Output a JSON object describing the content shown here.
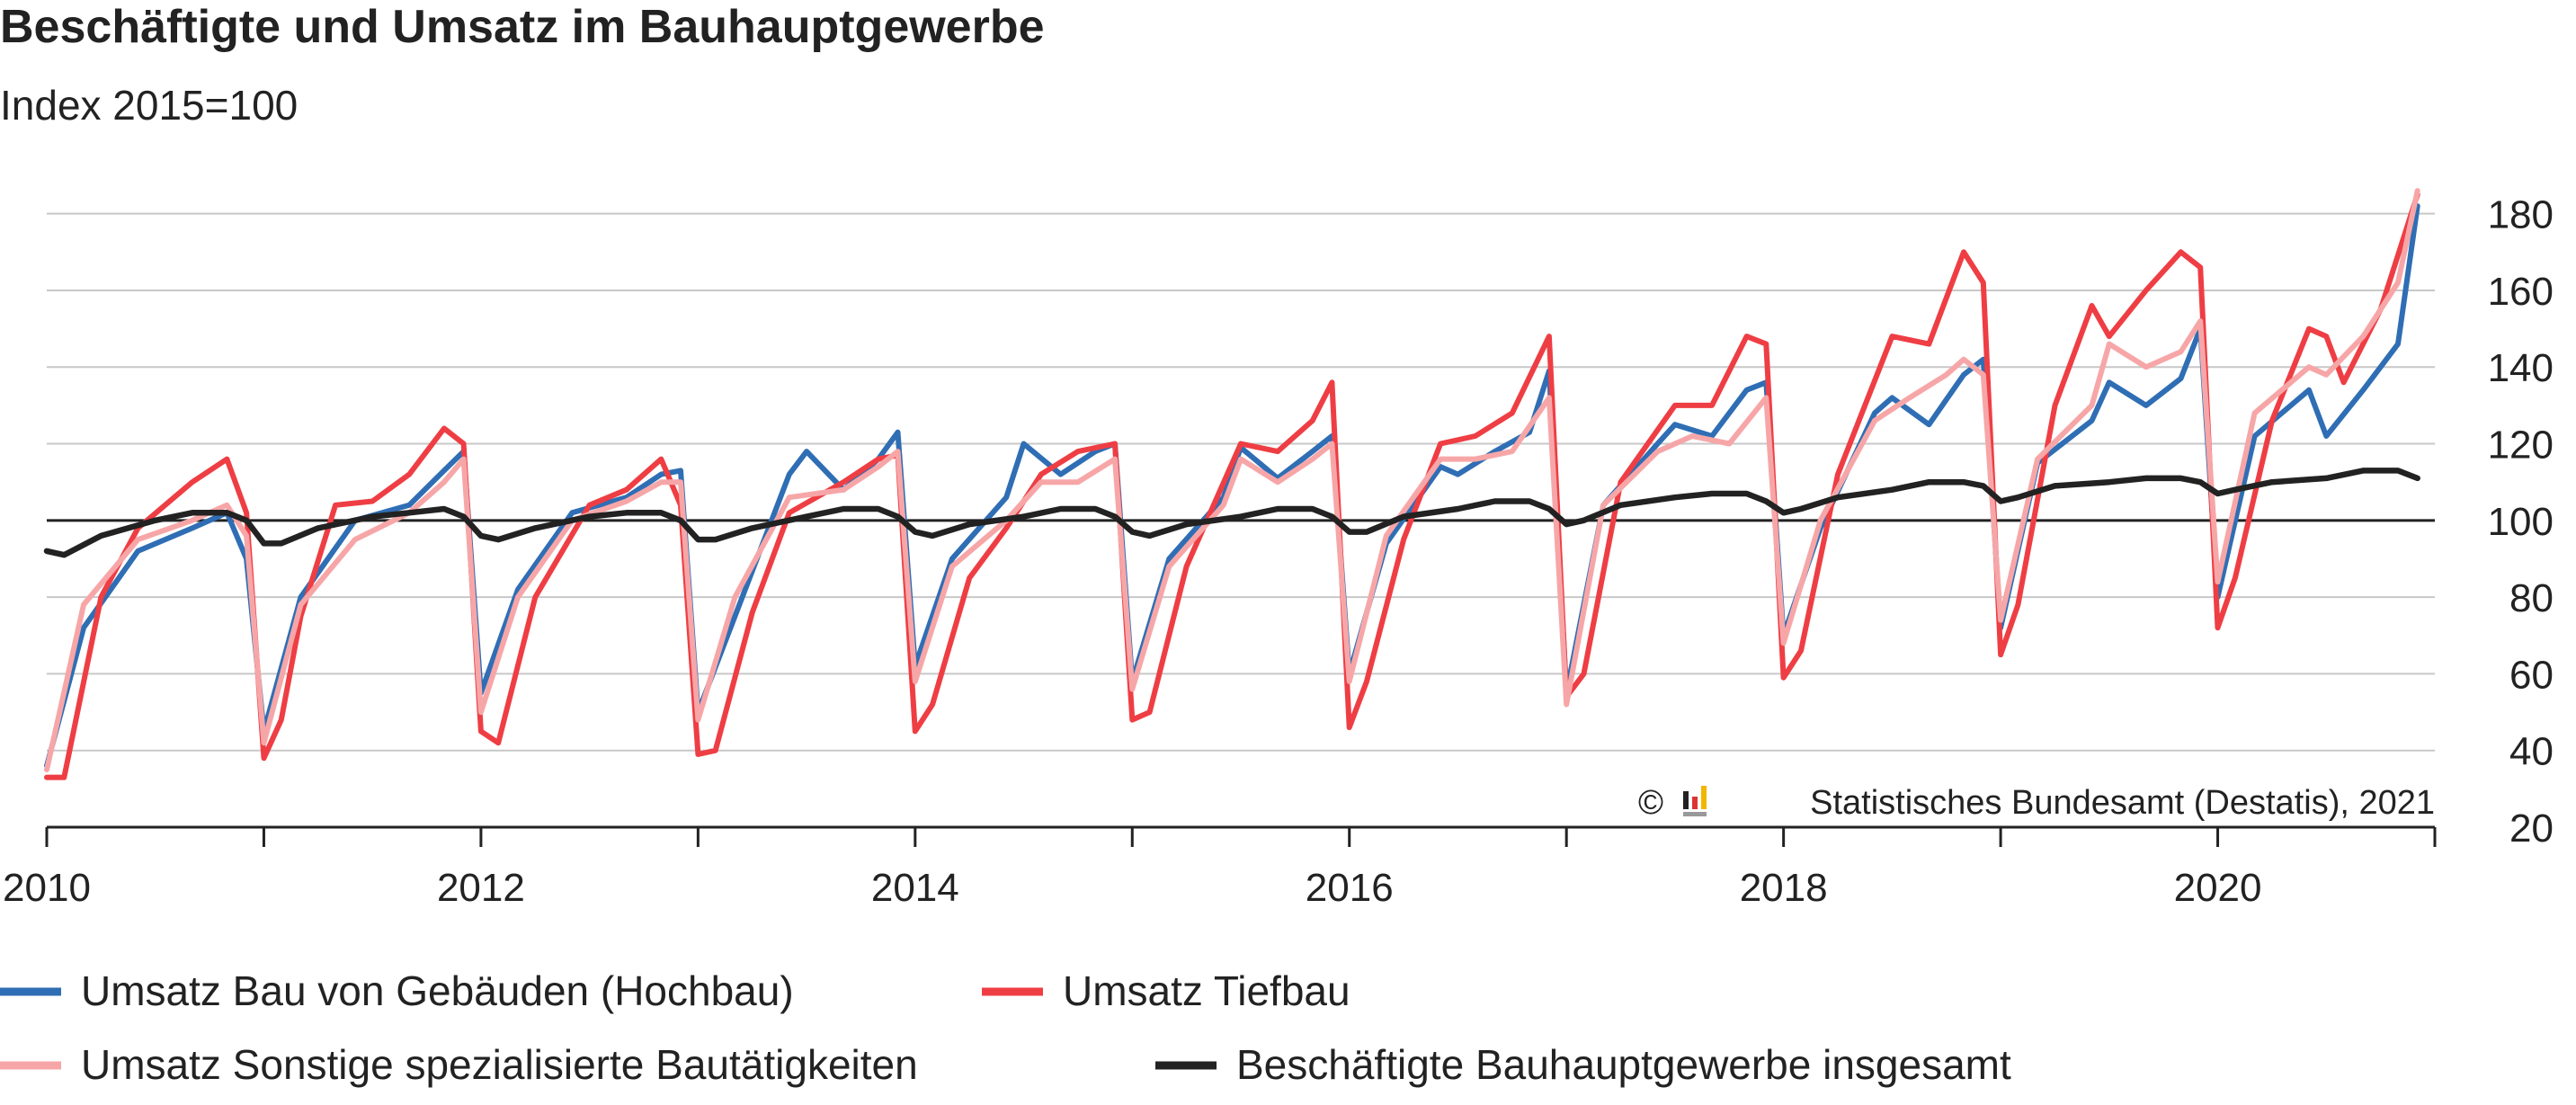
{
  "chart_data": {
    "type": "line",
    "title": "Beschäftigte und Umsatz im Bauhauptgewerbe",
    "subtitle": "Index 2015=100",
    "credit": "Statistisches Bundesamt (Destatis), 2021",
    "credit_symbol": "©",
    "xlim": [
      2010,
      2021
    ],
    "ylim": [
      20,
      190
    ],
    "x_ticks": [
      2010,
      2012,
      2014,
      2016,
      2018,
      2020
    ],
    "y_ticks": [
      20,
      40,
      60,
      80,
      100,
      120,
      140,
      160,
      180
    ],
    "reference_line": 100,
    "grid": true,
    "legend_position": "bottom",
    "series": [
      {
        "name": "Umsatz Bau von Gebäuden (Hochbau)",
        "color": "#2f6eb4",
        "values": [
          [
            2010.0,
            36
          ],
          [
            2010.17,
            72
          ],
          [
            2010.42,
            92
          ],
          [
            2010.67,
            98
          ],
          [
            2010.83,
            102
          ],
          [
            2010.92,
            90
          ],
          [
            2011.0,
            45
          ],
          [
            2011.17,
            80
          ],
          [
            2011.42,
            100
          ],
          [
            2011.67,
            104
          ],
          [
            2011.83,
            113
          ],
          [
            2011.92,
            118
          ],
          [
            2012.0,
            55
          ],
          [
            2012.17,
            82
          ],
          [
            2012.42,
            102
          ],
          [
            2012.67,
            106
          ],
          [
            2012.83,
            112
          ],
          [
            2012.92,
            113
          ],
          [
            2013.0,
            50
          ],
          [
            2013.17,
            75
          ],
          [
            2013.42,
            112
          ],
          [
            2013.5,
            118
          ],
          [
            2013.67,
            108
          ],
          [
            2013.83,
            116
          ],
          [
            2013.92,
            123
          ],
          [
            2014.0,
            62
          ],
          [
            2014.17,
            90
          ],
          [
            2014.42,
            106
          ],
          [
            2014.5,
            120
          ],
          [
            2014.67,
            112
          ],
          [
            2014.83,
            118
          ],
          [
            2014.92,
            120
          ],
          [
            2015.0,
            58
          ],
          [
            2015.17,
            90
          ],
          [
            2015.42,
            106
          ],
          [
            2015.5,
            119
          ],
          [
            2015.67,
            111
          ],
          [
            2015.83,
            118
          ],
          [
            2015.92,
            122
          ],
          [
            2016.0,
            60
          ],
          [
            2016.17,
            94
          ],
          [
            2016.42,
            114
          ],
          [
            2016.5,
            112
          ],
          [
            2016.67,
            118
          ],
          [
            2016.83,
            123
          ],
          [
            2016.92,
            139
          ],
          [
            2017.0,
            55
          ],
          [
            2017.17,
            104
          ],
          [
            2017.42,
            120
          ],
          [
            2017.5,
            125
          ],
          [
            2017.67,
            122
          ],
          [
            2017.83,
            134
          ],
          [
            2017.92,
            136
          ],
          [
            2018.0,
            70
          ],
          [
            2018.17,
            98
          ],
          [
            2018.42,
            128
          ],
          [
            2018.5,
            132
          ],
          [
            2018.67,
            125
          ],
          [
            2018.83,
            138
          ],
          [
            2018.92,
            142
          ],
          [
            2019.0,
            72
          ],
          [
            2019.17,
            115
          ],
          [
            2019.42,
            126
          ],
          [
            2019.5,
            136
          ],
          [
            2019.67,
            130
          ],
          [
            2019.83,
            137
          ],
          [
            2019.92,
            150
          ],
          [
            2020.0,
            80
          ],
          [
            2020.17,
            122
          ],
          [
            2020.42,
            134
          ],
          [
            2020.5,
            122
          ],
          [
            2020.67,
            134
          ],
          [
            2020.83,
            146
          ],
          [
            2020.92,
            182
          ]
        ]
      },
      {
        "name": "Umsatz Tiefbau",
        "color": "#ee3e44",
        "values": [
          [
            2010.0,
            33
          ],
          [
            2010.08,
            33
          ],
          [
            2010.25,
            80
          ],
          [
            2010.42,
            98
          ],
          [
            2010.67,
            110
          ],
          [
            2010.83,
            116
          ],
          [
            2010.92,
            102
          ],
          [
            2011.0,
            38
          ],
          [
            2011.08,
            48
          ],
          [
            2011.17,
            75
          ],
          [
            2011.33,
            104
          ],
          [
            2011.5,
            105
          ],
          [
            2011.67,
            112
          ],
          [
            2011.83,
            124
          ],
          [
            2011.92,
            120
          ],
          [
            2012.0,
            45
          ],
          [
            2012.08,
            42
          ],
          [
            2012.25,
            80
          ],
          [
            2012.5,
            104
          ],
          [
            2012.67,
            108
          ],
          [
            2012.83,
            116
          ],
          [
            2012.92,
            104
          ],
          [
            2013.0,
            39
          ],
          [
            2013.08,
            40
          ],
          [
            2013.25,
            76
          ],
          [
            2013.42,
            102
          ],
          [
            2013.67,
            110
          ],
          [
            2013.83,
            116
          ],
          [
            2013.92,
            117
          ],
          [
            2014.0,
            45
          ],
          [
            2014.08,
            52
          ],
          [
            2014.25,
            85
          ],
          [
            2014.42,
            98
          ],
          [
            2014.58,
            112
          ],
          [
            2014.75,
            118
          ],
          [
            2014.92,
            120
          ],
          [
            2015.0,
            48
          ],
          [
            2015.08,
            50
          ],
          [
            2015.25,
            88
          ],
          [
            2015.5,
            120
          ],
          [
            2015.67,
            118
          ],
          [
            2015.83,
            126
          ],
          [
            2015.92,
            136
          ],
          [
            2016.0,
            46
          ],
          [
            2016.08,
            58
          ],
          [
            2016.25,
            95
          ],
          [
            2016.42,
            120
          ],
          [
            2016.58,
            122
          ],
          [
            2016.75,
            128
          ],
          [
            2016.92,
            148
          ],
          [
            2017.0,
            54
          ],
          [
            2017.08,
            60
          ],
          [
            2017.25,
            110
          ],
          [
            2017.5,
            130
          ],
          [
            2017.67,
            130
          ],
          [
            2017.83,
            148
          ],
          [
            2017.92,
            146
          ],
          [
            2018.0,
            59
          ],
          [
            2018.08,
            66
          ],
          [
            2018.25,
            112
          ],
          [
            2018.5,
            148
          ],
          [
            2018.67,
            146
          ],
          [
            2018.83,
            170
          ],
          [
            2018.92,
            162
          ],
          [
            2019.0,
            65
          ],
          [
            2019.08,
            78
          ],
          [
            2019.25,
            130
          ],
          [
            2019.42,
            156
          ],
          [
            2019.5,
            148
          ],
          [
            2019.67,
            160
          ],
          [
            2019.83,
            170
          ],
          [
            2019.92,
            166
          ],
          [
            2020.0,
            72
          ],
          [
            2020.08,
            85
          ],
          [
            2020.25,
            126
          ],
          [
            2020.42,
            150
          ],
          [
            2020.5,
            148
          ],
          [
            2020.58,
            136
          ],
          [
            2020.75,
            155
          ],
          [
            2020.92,
            185
          ]
        ]
      },
      {
        "name": "Umsatz Sonstige spezialisierte Bautätigkeiten",
        "color": "#f7a6a8",
        "values": [
          [
            2010.0,
            35
          ],
          [
            2010.17,
            78
          ],
          [
            2010.42,
            95
          ],
          [
            2010.67,
            100
          ],
          [
            2010.83,
            104
          ],
          [
            2010.92,
            96
          ],
          [
            2011.0,
            42
          ],
          [
            2011.17,
            78
          ],
          [
            2011.42,
            95
          ],
          [
            2011.67,
            102
          ],
          [
            2011.83,
            110
          ],
          [
            2011.92,
            116
          ],
          [
            2012.0,
            50
          ],
          [
            2012.17,
            80
          ],
          [
            2012.42,
            100
          ],
          [
            2012.67,
            105
          ],
          [
            2012.83,
            110
          ],
          [
            2012.92,
            110
          ],
          [
            2013.0,
            48
          ],
          [
            2013.17,
            80
          ],
          [
            2013.42,
            106
          ],
          [
            2013.67,
            108
          ],
          [
            2013.83,
            114
          ],
          [
            2013.92,
            118
          ],
          [
            2014.0,
            58
          ],
          [
            2014.17,
            88
          ],
          [
            2014.42,
            100
          ],
          [
            2014.58,
            110
          ],
          [
            2014.75,
            110
          ],
          [
            2014.92,
            116
          ],
          [
            2015.0,
            56
          ],
          [
            2015.17,
            88
          ],
          [
            2015.42,
            104
          ],
          [
            2015.5,
            116
          ],
          [
            2015.67,
            110
          ],
          [
            2015.83,
            116
          ],
          [
            2015.92,
            120
          ],
          [
            2016.0,
            58
          ],
          [
            2016.17,
            96
          ],
          [
            2016.42,
            116
          ],
          [
            2016.58,
            116
          ],
          [
            2016.75,
            118
          ],
          [
            2016.92,
            132
          ],
          [
            2017.0,
            52
          ],
          [
            2017.17,
            104
          ],
          [
            2017.42,
            118
          ],
          [
            2017.58,
            122
          ],
          [
            2017.75,
            120
          ],
          [
            2017.92,
            132
          ],
          [
            2018.0,
            68
          ],
          [
            2018.17,
            100
          ],
          [
            2018.42,
            126
          ],
          [
            2018.58,
            132
          ],
          [
            2018.75,
            138
          ],
          [
            2018.83,
            142
          ],
          [
            2018.92,
            138
          ],
          [
            2019.0,
            74
          ],
          [
            2019.17,
            116
          ],
          [
            2019.42,
            130
          ],
          [
            2019.5,
            146
          ],
          [
            2019.67,
            140
          ],
          [
            2019.83,
            144
          ],
          [
            2019.92,
            152
          ],
          [
            2020.0,
            84
          ],
          [
            2020.17,
            128
          ],
          [
            2020.42,
            140
          ],
          [
            2020.5,
            138
          ],
          [
            2020.67,
            148
          ],
          [
            2020.83,
            162
          ],
          [
            2020.92,
            186
          ]
        ]
      },
      {
        "name": "Beschäftigte Bauhauptgewerbe insgesamt",
        "color": "#222222",
        "values": [
          [
            2010.0,
            92
          ],
          [
            2010.08,
            91
          ],
          [
            2010.25,
            96
          ],
          [
            2010.5,
            100
          ],
          [
            2010.67,
            102
          ],
          [
            2010.83,
            102
          ],
          [
            2010.92,
            100
          ],
          [
            2011.0,
            94
          ],
          [
            2011.08,
            94
          ],
          [
            2011.25,
            98
          ],
          [
            2011.5,
            101
          ],
          [
            2011.67,
            102
          ],
          [
            2011.83,
            103
          ],
          [
            2011.92,
            101
          ],
          [
            2012.0,
            96
          ],
          [
            2012.08,
            95
          ],
          [
            2012.25,
            98
          ],
          [
            2012.5,
            101
          ],
          [
            2012.67,
            102
          ],
          [
            2012.83,
            102
          ],
          [
            2012.92,
            100
          ],
          [
            2013.0,
            95
          ],
          [
            2013.08,
            95
          ],
          [
            2013.25,
            98
          ],
          [
            2013.5,
            101
          ],
          [
            2013.67,
            103
          ],
          [
            2013.83,
            103
          ],
          [
            2013.92,
            101
          ],
          [
            2014.0,
            97
          ],
          [
            2014.08,
            96
          ],
          [
            2014.25,
            99
          ],
          [
            2014.5,
            101
          ],
          [
            2014.67,
            103
          ],
          [
            2014.83,
            103
          ],
          [
            2014.92,
            101
          ],
          [
            2015.0,
            97
          ],
          [
            2015.08,
            96
          ],
          [
            2015.25,
            99
          ],
          [
            2015.5,
            101
          ],
          [
            2015.67,
            103
          ],
          [
            2015.83,
            103
          ],
          [
            2015.92,
            101
          ],
          [
            2016.0,
            97
          ],
          [
            2016.08,
            97
          ],
          [
            2016.25,
            101
          ],
          [
            2016.5,
            103
          ],
          [
            2016.67,
            105
          ],
          [
            2016.83,
            105
          ],
          [
            2016.92,
            103
          ],
          [
            2017.0,
            99
          ],
          [
            2017.08,
            100
          ],
          [
            2017.25,
            104
          ],
          [
            2017.5,
            106
          ],
          [
            2017.67,
            107
          ],
          [
            2017.83,
            107
          ],
          [
            2017.92,
            105
          ],
          [
            2018.0,
            102
          ],
          [
            2018.08,
            103
          ],
          [
            2018.25,
            106
          ],
          [
            2018.5,
            108
          ],
          [
            2018.67,
            110
          ],
          [
            2018.83,
            110
          ],
          [
            2018.92,
            109
          ],
          [
            2019.0,
            105
          ],
          [
            2019.08,
            106
          ],
          [
            2019.25,
            109
          ],
          [
            2019.5,
            110
          ],
          [
            2019.67,
            111
          ],
          [
            2019.83,
            111
          ],
          [
            2019.92,
            110
          ],
          [
            2020.0,
            107
          ],
          [
            2020.08,
            108
          ],
          [
            2020.25,
            110
          ],
          [
            2020.5,
            111
          ],
          [
            2020.67,
            113
          ],
          [
            2020.83,
            113
          ],
          [
            2020.92,
            111
          ]
        ]
      }
    ]
  }
}
